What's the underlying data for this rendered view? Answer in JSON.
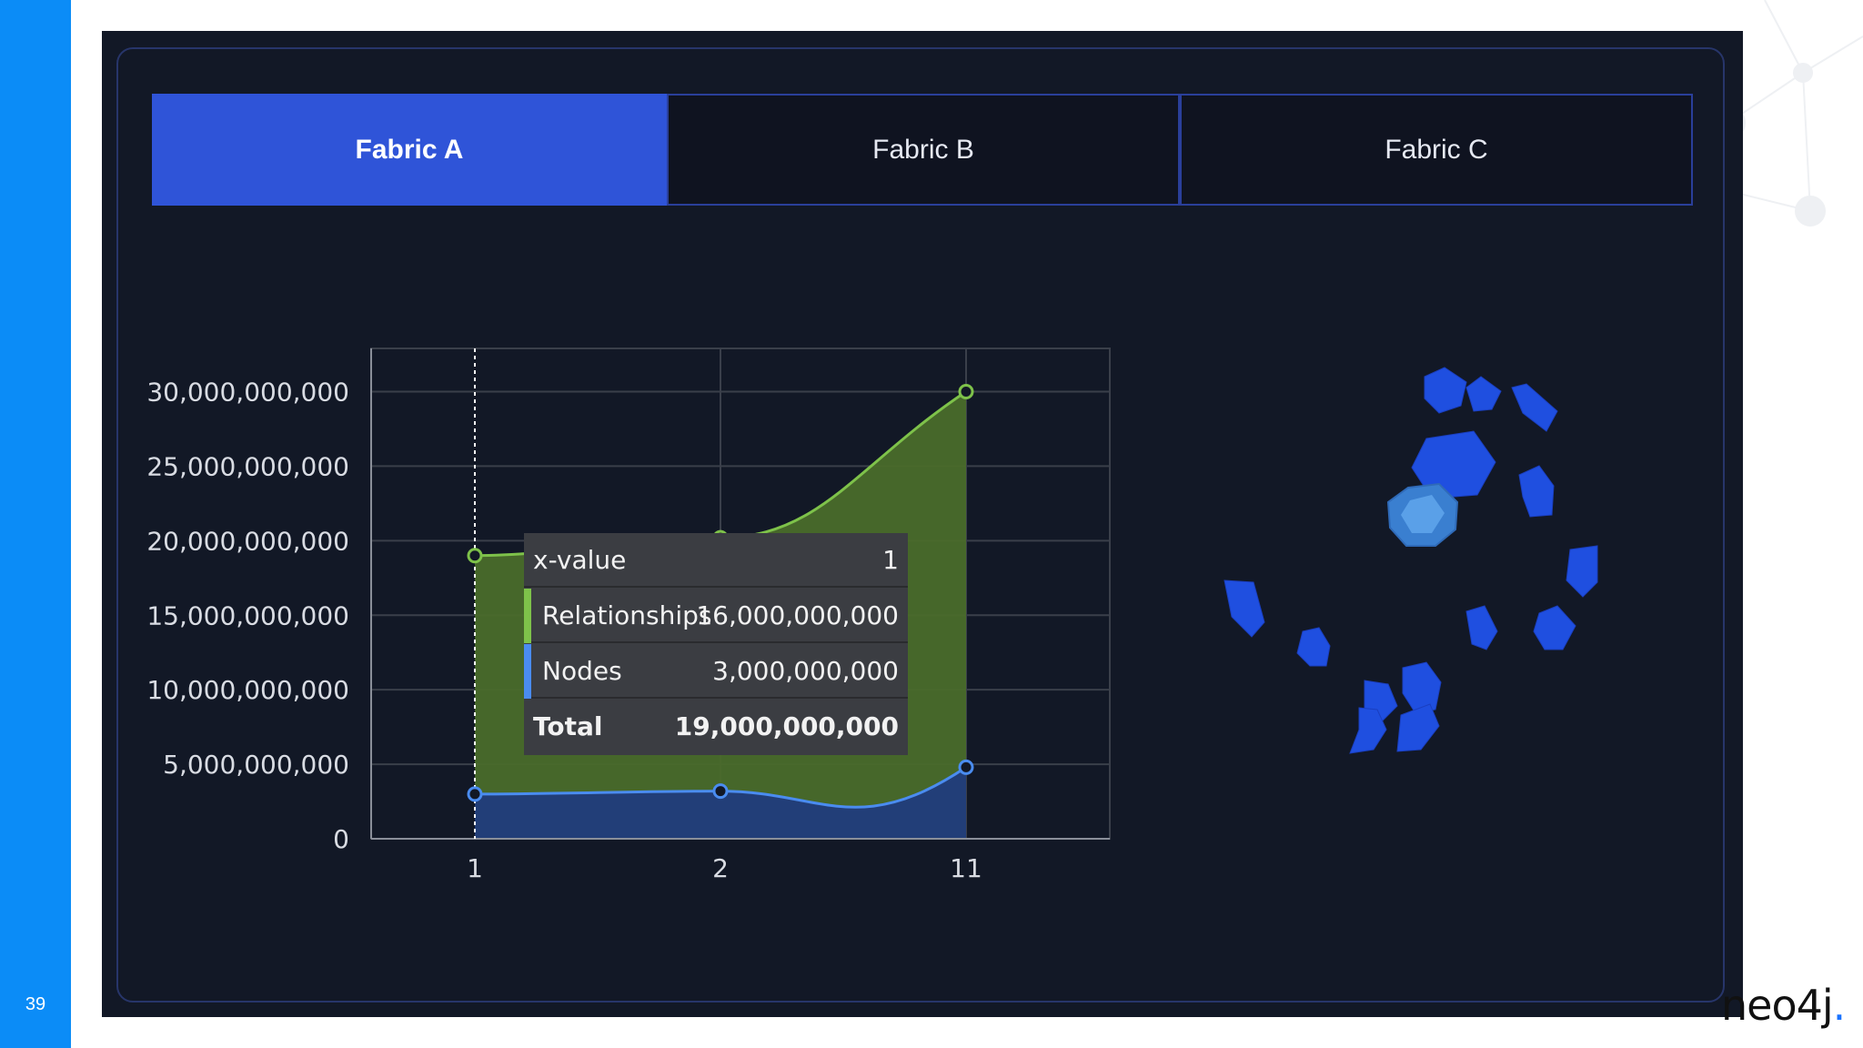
{
  "slide": {
    "number": "39"
  },
  "tabs": [
    {
      "label": "Fabric A",
      "active": true
    },
    {
      "label": "Fabric B",
      "active": false
    },
    {
      "label": "Fabric C",
      "active": false
    }
  ],
  "chart_data": {
    "type": "area",
    "categories": [
      "1",
      "2",
      "11"
    ],
    "y_ticks": [
      "0",
      "5,000,000,000",
      "10,000,000,000",
      "15,000,000,000",
      "20,000,000,000",
      "25,000,000,000",
      "30,000,000,000"
    ],
    "ylim": [
      0,
      32900000000
    ],
    "grid": true,
    "stacked": true,
    "series": [
      {
        "name": "Nodes",
        "color": "#4a8cf0",
        "values": [
          3000000000,
          3200000000,
          4800000000
        ]
      },
      {
        "name": "Relationships",
        "color": "#7ec24a",
        "values": [
          16000000000,
          17000000000,
          25200000000
        ]
      }
    ]
  },
  "tooltip": {
    "header_label": "x-value",
    "header_value": "1",
    "rows": [
      {
        "label": "Relationships",
        "value": "16,000,000,000",
        "color": "#7ec24a"
      },
      {
        "label": "Nodes",
        "value": "3,000,000,000",
        "color": "#4a8cf0"
      }
    ],
    "total_label": "Total",
    "total_value": "19,000,000,000"
  },
  "logo": {
    "text": "neo4j"
  }
}
